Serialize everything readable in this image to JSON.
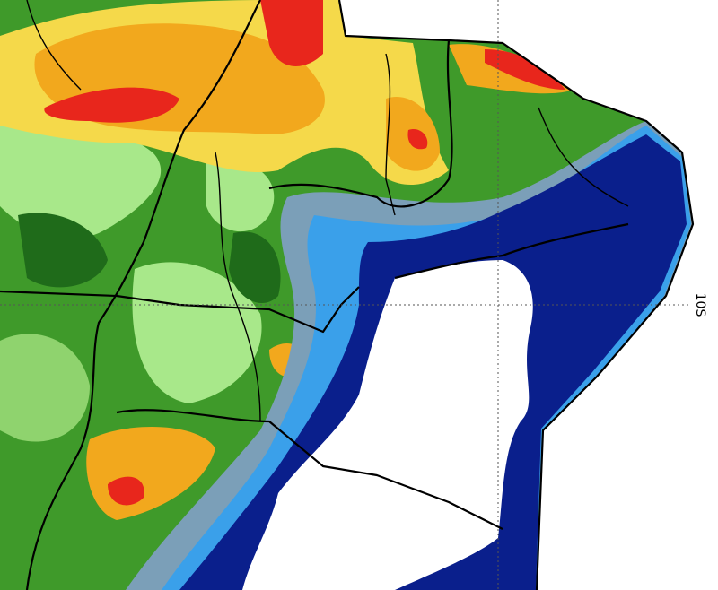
{
  "map": {
    "latitude_label": "10S"
  }
}
